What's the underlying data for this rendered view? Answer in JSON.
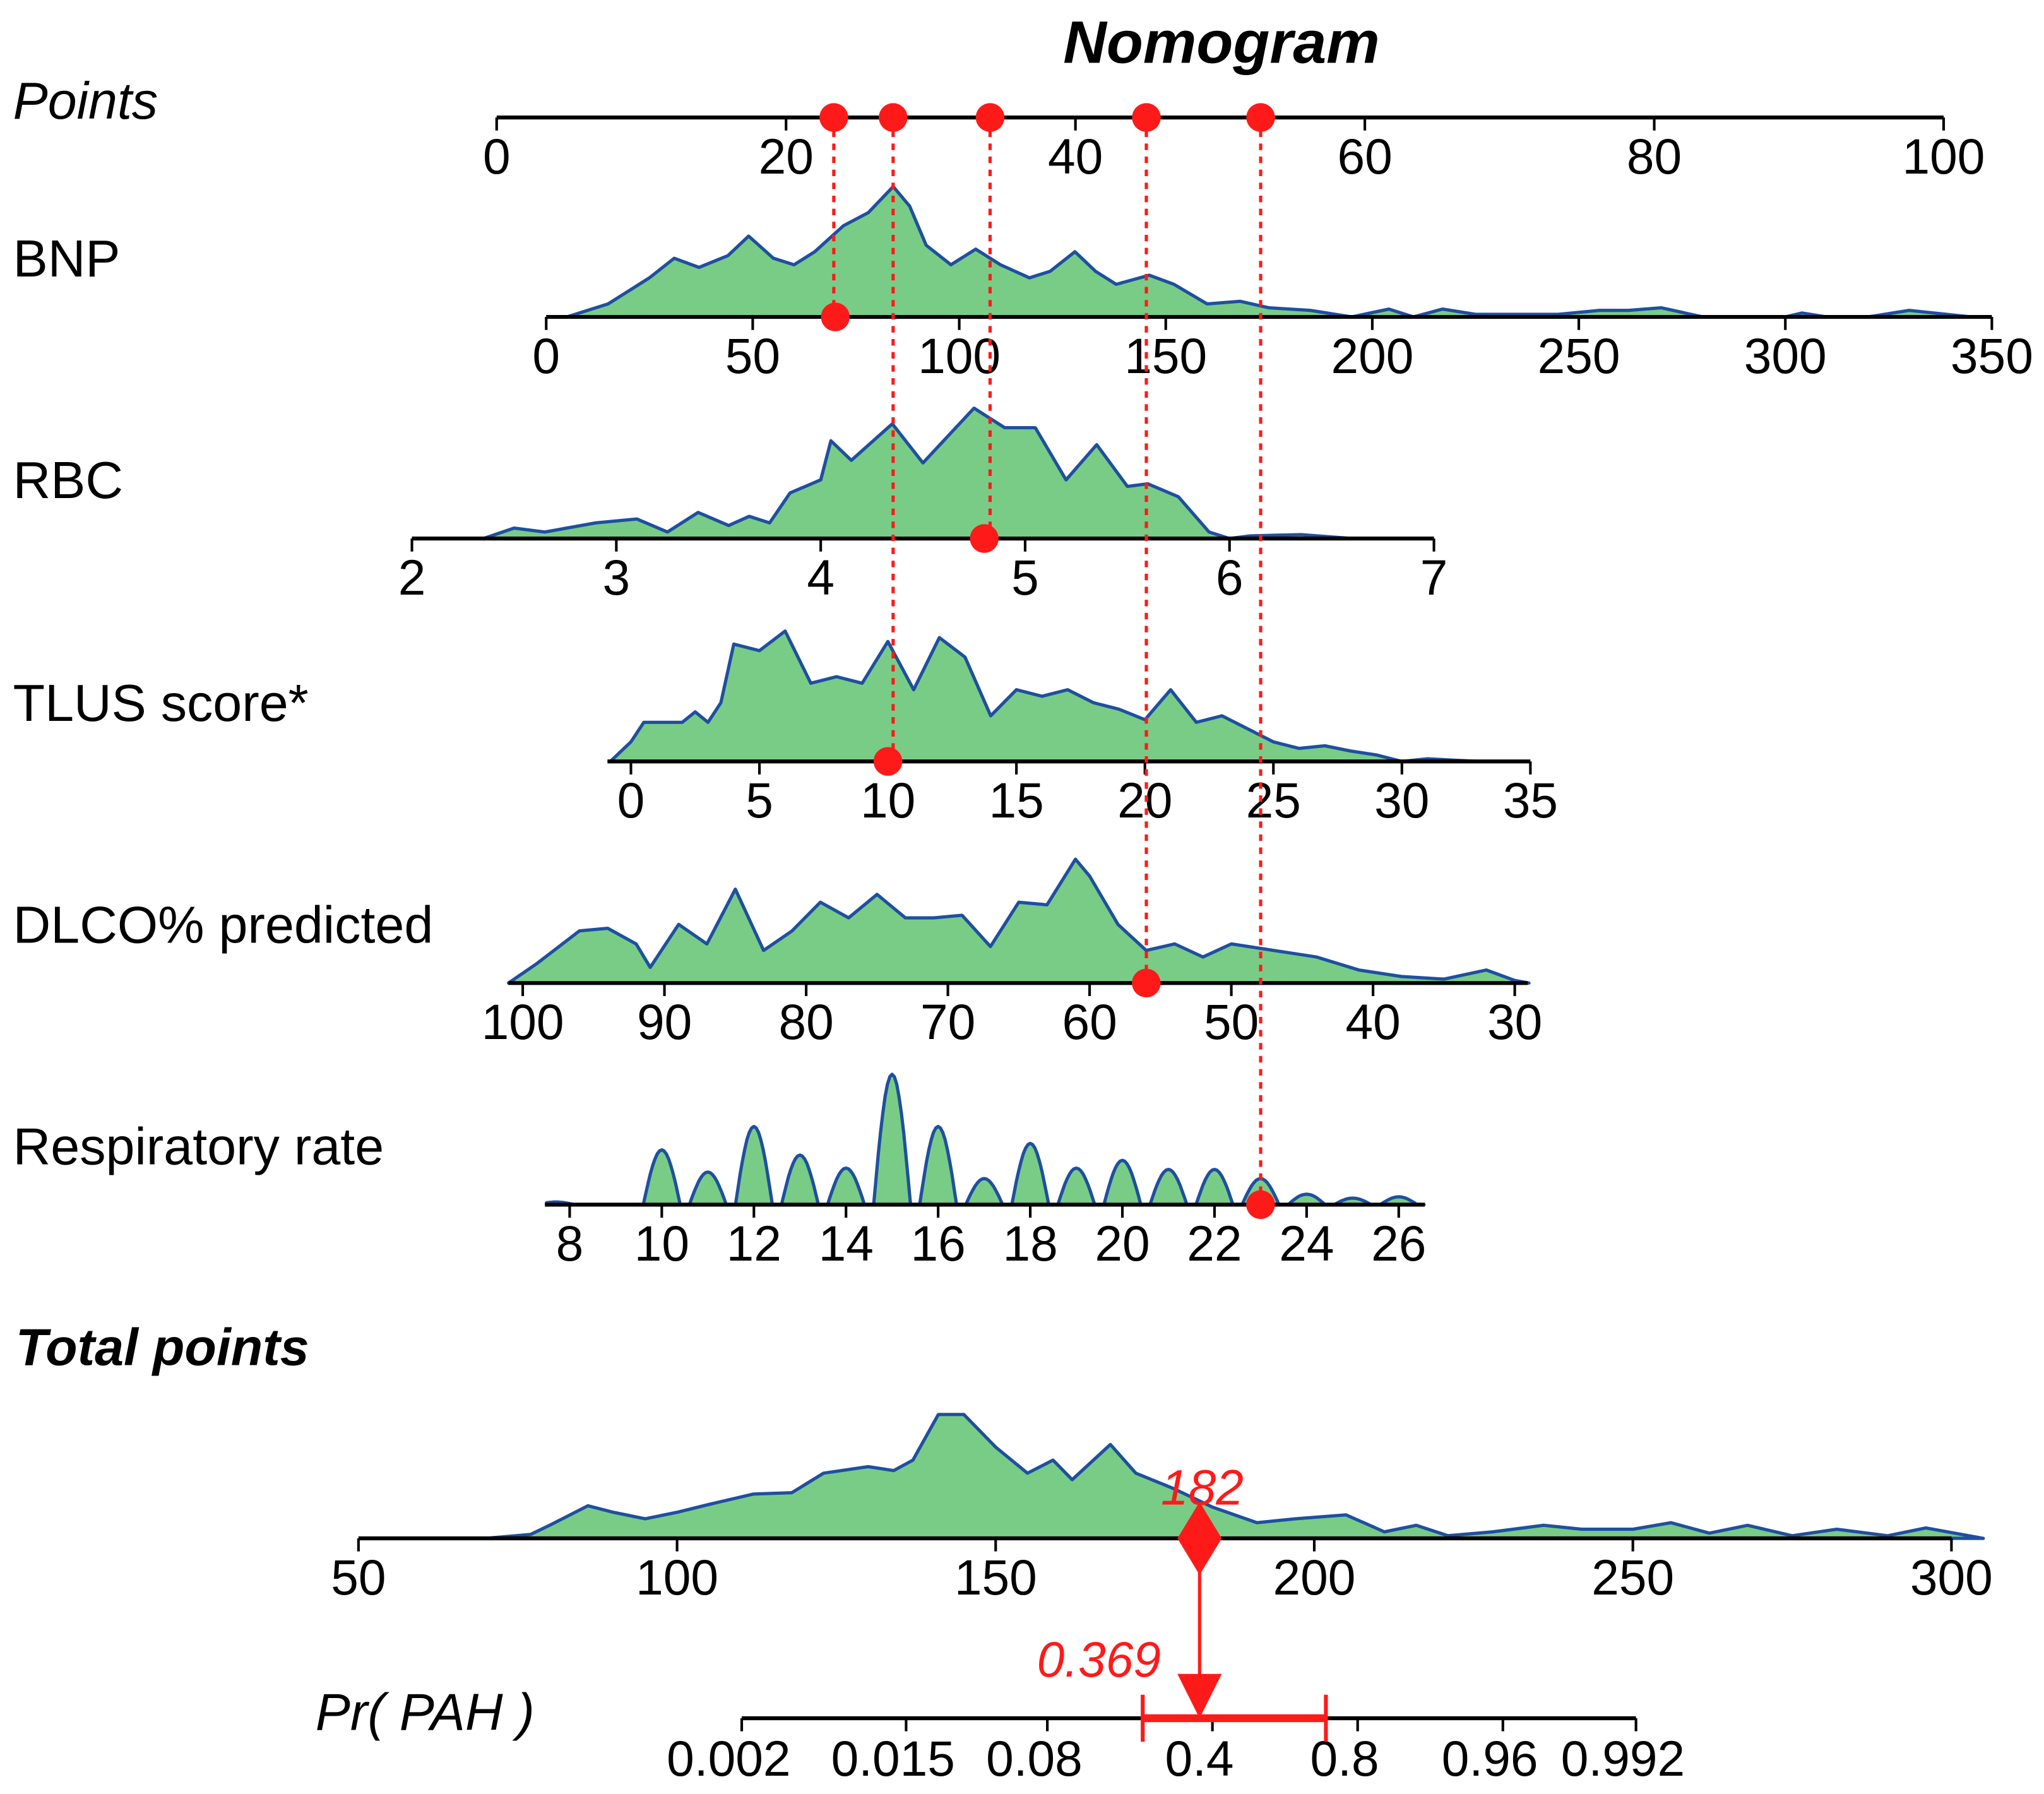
{
  "chart_data": {
    "type": "nomogram",
    "title": "Nomogram",
    "colors": {
      "density_fill": "#79cc86",
      "density_line": "#1f4fa0",
      "marker": "#ff1a1a",
      "axis": "#000000"
    },
    "points_scale": {
      "label": "Points",
      "range": [
        0,
        100
      ],
      "ticks": [
        0,
        20,
        40,
        60,
        80,
        100
      ]
    },
    "variables": [
      {
        "label": "BNP",
        "range": [
          0,
          350
        ],
        "ticks": [
          0,
          50,
          100,
          150,
          200,
          250,
          300,
          350
        ],
        "value": 70,
        "points": 23.3,
        "density": [
          [
            5,
            0
          ],
          [
            15,
            0.1
          ],
          [
            25,
            0.3
          ],
          [
            31,
            0.45
          ],
          [
            37,
            0.38
          ],
          [
            44,
            0.47
          ],
          [
            49,
            0.62
          ],
          [
            55,
            0.45
          ],
          [
            60,
            0.4
          ],
          [
            65,
            0.5
          ],
          [
            72,
            0.7
          ],
          [
            78,
            0.8
          ],
          [
            84,
            1.0
          ],
          [
            88,
            0.85
          ],
          [
            92,
            0.55
          ],
          [
            98,
            0.4
          ],
          [
            104,
            0.52
          ],
          [
            110,
            0.4
          ],
          [
            117,
            0.3
          ],
          [
            122,
            0.35
          ],
          [
            128,
            0.5
          ],
          [
            133,
            0.35
          ],
          [
            138,
            0.25
          ],
          [
            146,
            0.32
          ],
          [
            152,
            0.25
          ],
          [
            160,
            0.1
          ],
          [
            168,
            0.12
          ],
          [
            175,
            0.07
          ],
          [
            185,
            0.05
          ],
          [
            195,
            0
          ],
          [
            204,
            0.06
          ],
          [
            210,
            0
          ],
          [
            217,
            0.06
          ],
          [
            225,
            0.02
          ],
          [
            245,
            0.02
          ],
          [
            255,
            0.05
          ],
          [
            262,
            0.05
          ],
          [
            270,
            0.07
          ],
          [
            280,
            0
          ],
          [
            300,
            0
          ],
          [
            304,
            0.03
          ],
          [
            310,
            0
          ],
          [
            320,
            0
          ],
          [
            330,
            0.05
          ],
          [
            345,
            0
          ]
        ]
      },
      {
        "label": "RBC",
        "range": [
          2,
          7
        ],
        "ticks": [
          2,
          3,
          4,
          5,
          6,
          7
        ],
        "value": 4.8,
        "points": 34.1,
        "density": [
          [
            2.35,
            0
          ],
          [
            2.5,
            0.08
          ],
          [
            2.65,
            0.05
          ],
          [
            2.9,
            0.12
          ],
          [
            3.1,
            0.15
          ],
          [
            3.25,
            0.05
          ],
          [
            3.4,
            0.2
          ],
          [
            3.55,
            0.1
          ],
          [
            3.65,
            0.17
          ],
          [
            3.75,
            0.12
          ],
          [
            3.85,
            0.35
          ],
          [
            4.0,
            0.45
          ],
          [
            4.05,
            0.75
          ],
          [
            4.15,
            0.6
          ],
          [
            4.35,
            0.88
          ],
          [
            4.5,
            0.58
          ],
          [
            4.75,
            1.0
          ],
          [
            4.9,
            0.85
          ],
          [
            5.05,
            0.85
          ],
          [
            5.2,
            0.45
          ],
          [
            5.35,
            0.72
          ],
          [
            5.5,
            0.4
          ],
          [
            5.6,
            0.42
          ],
          [
            5.75,
            0.32
          ],
          [
            5.9,
            0.05
          ],
          [
            6.0,
            0
          ],
          [
            6.1,
            0.02
          ],
          [
            6.35,
            0.03
          ],
          [
            6.6,
            0
          ]
        ]
      },
      {
        "label": "TLUS score*",
        "range": [
          0,
          35
        ],
        "ticks": [
          0,
          5,
          10,
          15,
          20,
          25,
          30,
          35
        ],
        "value": 10,
        "points": 27.4,
        "density": [
          [
            -0.8,
            0
          ],
          [
            0,
            0.15
          ],
          [
            0.5,
            0.3
          ],
          [
            2,
            0.3
          ],
          [
            2.5,
            0.38
          ],
          [
            3,
            0.3
          ],
          [
            3.5,
            0.45
          ],
          [
            4,
            0.9
          ],
          [
            5,
            0.85
          ],
          [
            6,
            1.0
          ],
          [
            7,
            0.6
          ],
          [
            8,
            0.65
          ],
          [
            9,
            0.6
          ],
          [
            10,
            0.92
          ],
          [
            11,
            0.55
          ],
          [
            12,
            0.95
          ],
          [
            13,
            0.8
          ],
          [
            14,
            0.35
          ],
          [
            15,
            0.55
          ],
          [
            16,
            0.5
          ],
          [
            17,
            0.55
          ],
          [
            18,
            0.45
          ],
          [
            19,
            0.4
          ],
          [
            20,
            0.32
          ],
          [
            21,
            0.55
          ],
          [
            22,
            0.3
          ],
          [
            23,
            0.35
          ],
          [
            24,
            0.25
          ],
          [
            25,
            0.15
          ],
          [
            26,
            0.1
          ],
          [
            27,
            0.12
          ],
          [
            28,
            0.08
          ],
          [
            29,
            0.05
          ],
          [
            30,
            0
          ],
          [
            31,
            0.02
          ],
          [
            32,
            0.01
          ],
          [
            33,
            0
          ]
        ]
      },
      {
        "label": "DLCO% predicted",
        "range": [
          100,
          30
        ],
        "ticks": [
          100,
          90,
          80,
          70,
          60,
          50,
          40,
          30
        ],
        "value": 56,
        "points": 44.9,
        "density": [
          [
            101,
            0
          ],
          [
            99,
            0.15
          ],
          [
            96,
            0.4
          ],
          [
            94,
            0.42
          ],
          [
            92,
            0.3
          ],
          [
            91,
            0.12
          ],
          [
            89,
            0.45
          ],
          [
            87,
            0.3
          ],
          [
            85,
            0.72
          ],
          [
            83,
            0.25
          ],
          [
            81,
            0.4
          ],
          [
            79,
            0.62
          ],
          [
            77,
            0.5
          ],
          [
            75,
            0.68
          ],
          [
            73,
            0.5
          ],
          [
            71,
            0.5
          ],
          [
            69,
            0.52
          ],
          [
            67,
            0.28
          ],
          [
            65,
            0.62
          ],
          [
            63,
            0.6
          ],
          [
            61,
            0.95
          ],
          [
            60,
            0.82
          ],
          [
            58,
            0.45
          ],
          [
            56,
            0.25
          ],
          [
            54,
            0.3
          ],
          [
            52,
            0.2
          ],
          [
            50,
            0.3
          ],
          [
            47,
            0.25
          ],
          [
            44,
            0.2
          ],
          [
            41,
            0.1
          ],
          [
            38,
            0.05
          ],
          [
            35,
            0.03
          ],
          [
            32,
            0.1
          ],
          [
            30,
            0.02
          ],
          [
            29,
            0
          ]
        ]
      },
      {
        "label": "Respiratory rate",
        "range": [
          8,
          26
        ],
        "ticks": [
          8,
          10,
          12,
          14,
          16,
          18,
          20,
          22,
          24,
          26
        ],
        "value": 23,
        "points": 52.8,
        "density_peaks": [
          [
            7.7,
            0.02
          ],
          [
            10,
            0.42
          ],
          [
            11,
            0.25
          ],
          [
            12,
            0.6
          ],
          [
            13,
            0.38
          ],
          [
            14,
            0.28
          ],
          [
            15,
            1.0
          ],
          [
            16,
            0.6
          ],
          [
            17,
            0.2
          ],
          [
            18,
            0.47
          ],
          [
            19,
            0.28
          ],
          [
            20,
            0.34
          ],
          [
            21,
            0.27
          ],
          [
            22,
            0.27
          ],
          [
            23,
            0.2
          ],
          [
            24,
            0.08
          ],
          [
            25,
            0.05
          ],
          [
            26,
            0.06
          ]
        ]
      }
    ],
    "total_points": {
      "label": "Total points",
      "range": [
        50,
        300
      ],
      "ticks": [
        50,
        100,
        150,
        200,
        250,
        300
      ],
      "value": 182,
      "value_label": "182",
      "density": [
        [
          70,
          0
        ],
        [
          77,
          0.03
        ],
        [
          80,
          0.1
        ],
        [
          86,
          0.25
        ],
        [
          90,
          0.2
        ],
        [
          95,
          0.15
        ],
        [
          100,
          0.2
        ],
        [
          105,
          0.26
        ],
        [
          112,
          0.34
        ],
        [
          118,
          0.35
        ],
        [
          123,
          0.5
        ],
        [
          130,
          0.55
        ],
        [
          134,
          0.52
        ],
        [
          137,
          0.6
        ],
        [
          141,
          0.95
        ],
        [
          145,
          0.95
        ],
        [
          150,
          0.7
        ],
        [
          155,
          0.5
        ],
        [
          159,
          0.6
        ],
        [
          162,
          0.45
        ],
        [
          168,
          0.72
        ],
        [
          172,
          0.5
        ],
        [
          178,
          0.38
        ],
        [
          184,
          0.24
        ],
        [
          191,
          0.12
        ],
        [
          197,
          0.15
        ],
        [
          205,
          0.18
        ],
        [
          211,
          0.05
        ],
        [
          216,
          0.1
        ],
        [
          221,
          0.02
        ],
        [
          228,
          0.05
        ],
        [
          236,
          0.1
        ],
        [
          242,
          0.07
        ],
        [
          250,
          0.07
        ],
        [
          256,
          0.12
        ],
        [
          262,
          0.04
        ],
        [
          268,
          0.1
        ],
        [
          275,
          0.02
        ],
        [
          282,
          0.07
        ],
        [
          290,
          0.02
        ],
        [
          296,
          0.08
        ],
        [
          305,
          0
        ]
      ]
    },
    "probability": {
      "label": "Pr( PAH )",
      "scale": "logit",
      "ticks": [
        0.002,
        0.015,
        0.08,
        0.4,
        0.8,
        0.96,
        0.992
      ],
      "tick_labels": [
        "0.002",
        "0.015",
        "0.08",
        "0.4",
        "0.8",
        "0.96",
        "0.992"
      ],
      "value": 0.369,
      "value_label": "0.369",
      "ci": [
        0.22,
        0.73
      ]
    }
  }
}
